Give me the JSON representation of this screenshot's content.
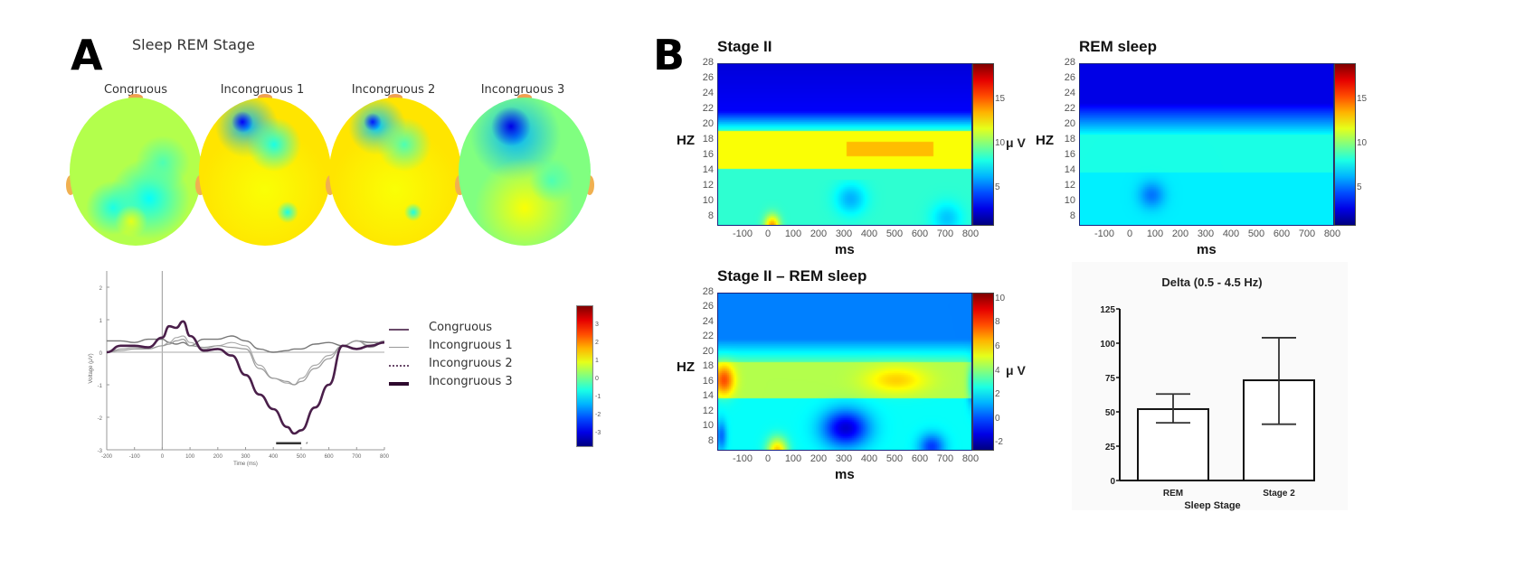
{
  "panel_a": {
    "letter": "A",
    "title": "Sleep REM Stage",
    "topomaps": [
      {
        "label": "Congruous"
      },
      {
        "label": "Incongruous 1"
      },
      {
        "label": "Incongruous 2"
      },
      {
        "label": "Incongruous 3"
      }
    ],
    "colorbar": {
      "ticks": [
        "3",
        "2",
        "1",
        "0",
        "-1",
        "-2",
        "-3"
      ]
    }
  },
  "panel_b": {
    "letter": "B",
    "heatmap_titles": [
      "Stage II",
      "REM sleep",
      "Stage II – REM sleep"
    ],
    "y_axis_label": "HZ",
    "x_axis_label": "ms",
    "unit_label": "μ V",
    "y_ticks": [
      "28",
      "26",
      "24",
      "22",
      "20",
      "18",
      "16",
      "14",
      "12",
      "10",
      "8"
    ],
    "x_ticks": [
      "-100",
      "0",
      "100",
      "200",
      "300",
      "400",
      "500",
      "600",
      "700",
      "800"
    ],
    "colorbar_ticks_main": [
      "15",
      "10",
      "5"
    ],
    "colorbar_ticks_diff": [
      "10",
      "8",
      "6",
      "4",
      "2",
      "0",
      "-2"
    ]
  },
  "chart_data": [
    {
      "type": "line",
      "title": "",
      "xlabel": "Time (ms)",
      "ylabel": "Voltage (μV)",
      "xlim": [
        -200,
        800
      ],
      "ylim": [
        -3,
        2.5
      ],
      "x_ticks": [
        "-200",
        "-100",
        "0",
        "100",
        "200",
        "300",
        "400",
        "500",
        "600",
        "700",
        "800"
      ],
      "y_ticks": [
        "2",
        "1",
        "0",
        "-1",
        "-2",
        "-3"
      ],
      "significance_bar": {
        "x_start": 410,
        "x_end": 500,
        "y": -2.8,
        "marker": "*"
      },
      "legend": [
        "Congruous",
        "Incongruous 1",
        "Incongruous 2",
        "Incongruous 3"
      ],
      "x": [
        -200,
        -150,
        -100,
        -50,
        0,
        25,
        50,
        75,
        100,
        150,
        200,
        250,
        300,
        350,
        400,
        450,
        475,
        500,
        550,
        600,
        650,
        700,
        750,
        800
      ],
      "series": [
        {
          "name": "Congruous",
          "values": [
            0.35,
            0.35,
            0.3,
            0.4,
            0.4,
            0.3,
            0.25,
            0.3,
            0.2,
            0.4,
            0.4,
            0.5,
            0.35,
            0.1,
            0.0,
            0.05,
            0.1,
            0.1,
            0.25,
            0.3,
            0.2,
            0.35,
            0.3,
            0.3
          ]
        },
        {
          "name": "Incongruous 1",
          "values": [
            0.0,
            0.1,
            0.15,
            0.1,
            0.2,
            0.3,
            0.45,
            0.5,
            0.3,
            0.1,
            0.2,
            0.3,
            0.2,
            -0.4,
            -0.8,
            -0.95,
            -1.0,
            -0.8,
            -0.4,
            -0.1,
            0.2,
            0.35,
            0.2,
            0.35
          ]
        },
        {
          "name": "Incongruous 2",
          "values": [
            0.0,
            0.05,
            0.1,
            0.1,
            0.2,
            0.25,
            0.35,
            0.4,
            0.2,
            0.15,
            0.2,
            0.15,
            0.1,
            -0.5,
            -0.8,
            -0.9,
            -1.0,
            -0.9,
            -0.5,
            -0.2,
            0.2,
            0.35,
            0.15,
            0.3
          ]
        },
        {
          "name": "Incongruous 3",
          "values": [
            0.0,
            0.2,
            0.2,
            0.15,
            0.45,
            0.8,
            0.75,
            0.95,
            0.5,
            0.05,
            0.1,
            -0.1,
            -0.7,
            -1.3,
            -1.75,
            -2.3,
            -2.5,
            -2.4,
            -1.7,
            -1.0,
            0.2,
            0.1,
            0.2,
            0.3
          ]
        }
      ]
    },
    {
      "type": "heatmap",
      "title": "Stage II",
      "xlabel": "ms",
      "ylabel": "HZ",
      "xlim": [
        -200,
        800
      ],
      "ylim": [
        7,
        28
      ],
      "colorbar": {
        "label": "μ V",
        "range": [
          1,
          19
        ],
        "ticks": [
          5,
          10,
          15
        ]
      }
    },
    {
      "type": "heatmap",
      "title": "REM sleep",
      "xlabel": "ms",
      "ylabel": "HZ",
      "xlim": [
        -200,
        800
      ],
      "ylim": [
        7,
        28
      ],
      "colorbar": {
        "label": "μ V",
        "range": [
          1,
          19
        ],
        "ticks": [
          5,
          10,
          15
        ]
      }
    },
    {
      "type": "heatmap",
      "title": "Stage II – REM sleep",
      "xlabel": "ms",
      "ylabel": "HZ",
      "xlim": [
        -200,
        800
      ],
      "ylim": [
        7,
        28
      ],
      "colorbar": {
        "label": "μ V",
        "range": [
          -2.5,
          10.5
        ],
        "ticks": [
          -2,
          0,
          2,
          4,
          6,
          8,
          10
        ]
      }
    },
    {
      "type": "bar",
      "title": "Delta (0.5 - 4.5 Hz)",
      "xlabel": "Sleep Stage",
      "ylabel": "",
      "categories": [
        "REM",
        "Stage 2"
      ],
      "values": [
        52,
        73
      ],
      "error_low": [
        42,
        41
      ],
      "error_high": [
        63,
        104
      ],
      "ylim": [
        0,
        125
      ],
      "y_ticks": [
        "125",
        "100",
        "75",
        "50",
        "25",
        "0"
      ]
    }
  ]
}
